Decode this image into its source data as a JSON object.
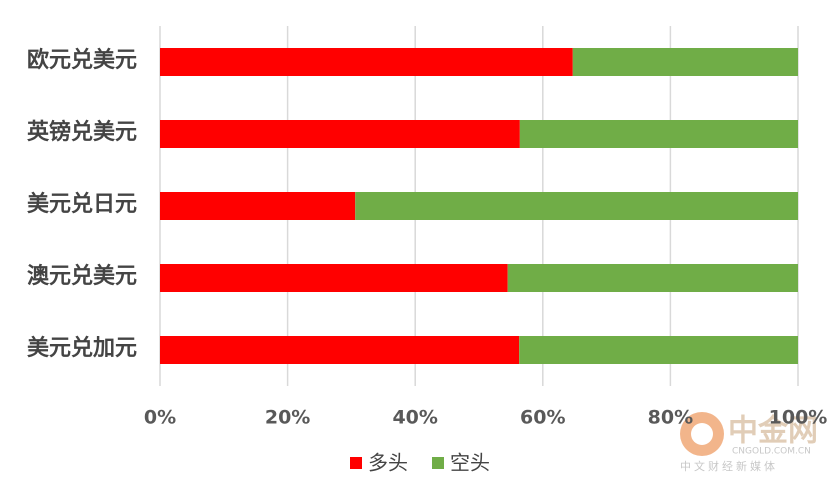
{
  "chart_data": {
    "type": "stacked-bar-horizontal",
    "categories": [
      "欧元兑美元",
      "英镑兑美元",
      "美元兑日元",
      "澳元兑美元",
      "美元兑加元"
    ],
    "series": [
      {
        "name": "多头",
        "color": "#ff0000",
        "values": [
          64.7,
          56.4,
          30.6,
          54.5,
          56.3
        ]
      },
      {
        "name": "空头",
        "color": "#70ad47",
        "values": [
          35.3,
          43.6,
          69.4,
          45.5,
          43.7
        ]
      }
    ],
    "xlim": [
      0,
      100
    ],
    "xticks": [
      {
        "value": 0,
        "label": "0%"
      },
      {
        "value": 20,
        "label": "20%"
      },
      {
        "value": 40,
        "label": "40%"
      },
      {
        "value": 60,
        "label": "60%"
      },
      {
        "value": 80,
        "label": "80%"
      },
      {
        "value": 100,
        "label": "100%"
      }
    ],
    "grid": true,
    "legend": "bottom",
    "watermark": {
      "logo": "中金网",
      "domain": "CNGOLD.COM.CN",
      "slogan": "中文财经新媒体"
    }
  }
}
